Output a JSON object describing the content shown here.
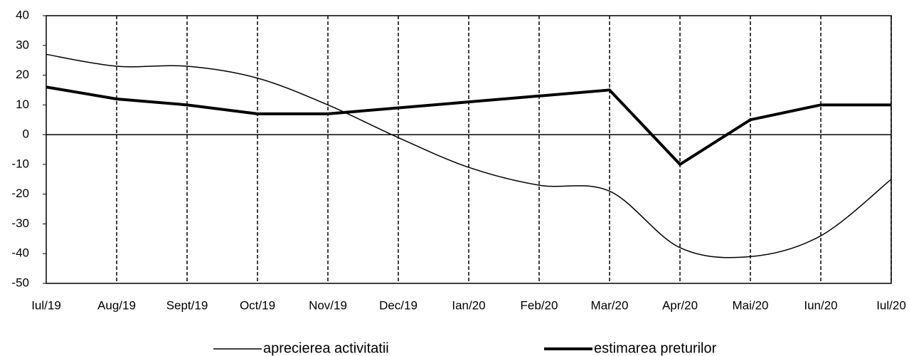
{
  "chart_data": {
    "type": "line",
    "categories": [
      "Iul/19",
      "Aug/19",
      "Sept/19",
      "Oct/19",
      "Nov/19",
      "Dec/19",
      "Ian/20",
      "Feb/20",
      "Mar/20",
      "Apr/20",
      "Mai/20",
      "Iun/20",
      "Iul/20"
    ],
    "series": [
      {
        "name": "aprecierea activitatii",
        "color": "#000000",
        "smooth": true,
        "width": 1.5,
        "values": [
          27,
          23,
          23,
          19,
          10,
          -1,
          -11,
          -17,
          -19,
          -38,
          -41,
          -34,
          -15
        ]
      },
      {
        "name": "estimarea preturilor",
        "color": "#000000",
        "smooth": false,
        "width": 4,
        "values": [
          16,
          12,
          10,
          7,
          7,
          9,
          11,
          13,
          15,
          -10,
          5,
          10,
          10
        ]
      }
    ],
    "ylim": [
      -50,
      40
    ],
    "yticks": [
      -50,
      -40,
      -30,
      -20,
      -10,
      0,
      10,
      20,
      30,
      40
    ],
    "vertical_grid": "dashed",
    "legend": "bottom"
  }
}
